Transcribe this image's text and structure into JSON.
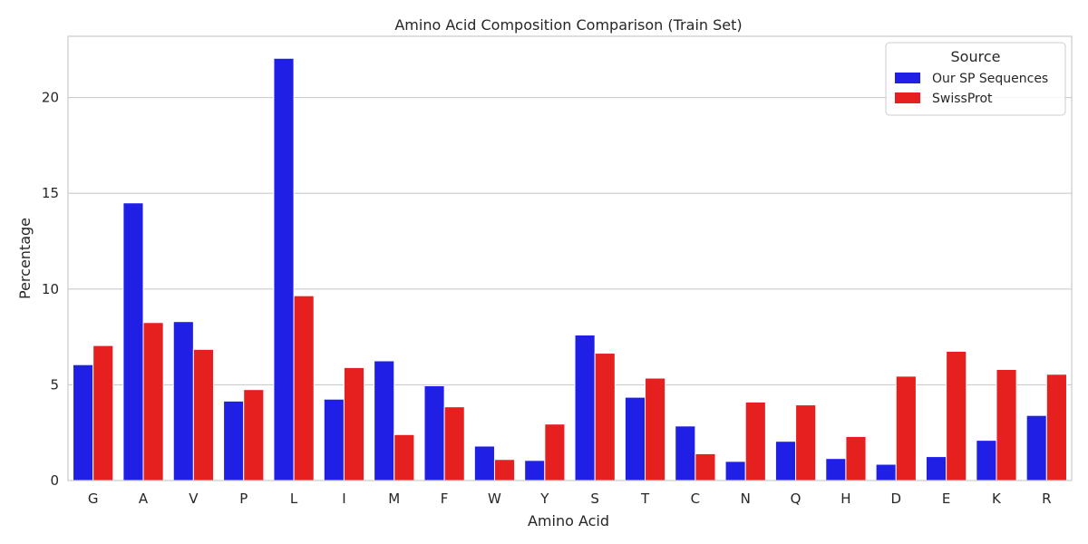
{
  "chart_data": {
    "type": "bar",
    "title": "Amino Acid Composition Comparison (Train Set)",
    "xlabel": "Amino Acid",
    "ylabel": "Percentage",
    "ylim": [
      0,
      23.2
    ],
    "yticks": [
      0,
      5,
      10,
      15,
      20
    ],
    "grid": true,
    "legend_position": "top-right",
    "legend_title": "Source",
    "categories": [
      "G",
      "A",
      "V",
      "P",
      "L",
      "I",
      "M",
      "F",
      "W",
      "Y",
      "S",
      "T",
      "C",
      "N",
      "Q",
      "H",
      "D",
      "E",
      "K",
      "R"
    ],
    "series": [
      {
        "name": "Our SP Sequences",
        "color": "#1f1fe6",
        "values": [
          6.05,
          14.5,
          8.3,
          4.15,
          22.05,
          4.25,
          6.25,
          4.95,
          1.8,
          1.05,
          7.6,
          4.35,
          2.85,
          1.0,
          2.05,
          1.15,
          0.85,
          1.25,
          2.1,
          3.4
        ]
      },
      {
        "name": "SwissProt",
        "color": "#e61f1f",
        "values": [
          7.05,
          8.25,
          6.85,
          4.75,
          9.65,
          5.9,
          2.4,
          3.85,
          1.1,
          2.95,
          6.65,
          5.35,
          1.4,
          4.1,
          3.95,
          2.3,
          5.45,
          6.75,
          5.8,
          5.55
        ]
      }
    ]
  }
}
